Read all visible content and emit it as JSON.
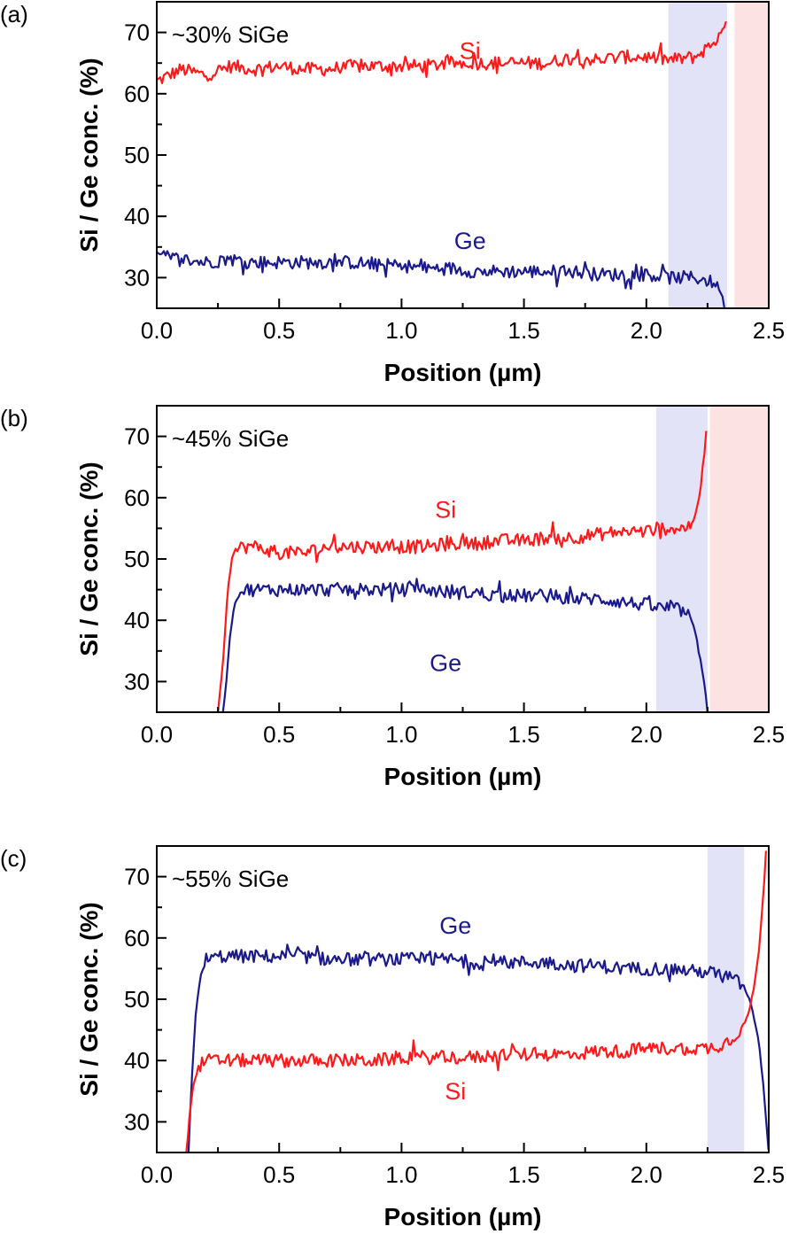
{
  "chart_data": [
    {
      "type": "line",
      "panel_label": "(a)",
      "title": "~30% SiGe",
      "xlabel": "Position (µm)",
      "ylabel": "Si / Ge conc. (%)",
      "xlim": [
        0,
        2.5
      ],
      "ylim": [
        25,
        75
      ],
      "xticks": [
        "0.0",
        "0.5",
        "1.0",
        "1.5",
        "2.0",
        "2.5"
      ],
      "yticks": [
        "30",
        "40",
        "50",
        "60",
        "70"
      ],
      "shaded_regions": [
        {
          "x": [
            2.09,
            2.33
          ],
          "color": "#e3e3f8"
        },
        {
          "x": [
            2.36,
            2.5
          ],
          "color": "#fde2e4"
        }
      ],
      "series": [
        {
          "name": "Si",
          "color": "#ff1a1a",
          "label_pos": [
            1.28,
            67
          ],
          "x": [
            0.0,
            0.1,
            0.2,
            0.3,
            0.4,
            0.5,
            0.6,
            0.7,
            0.8,
            0.9,
            1.0,
            1.1,
            1.2,
            1.3,
            1.4,
            1.5,
            1.6,
            1.7,
            1.8,
            1.9,
            2.0,
            2.1,
            2.2,
            2.25,
            2.3,
            2.32,
            2.33
          ],
          "y": [
            62,
            64,
            63,
            64.5,
            64,
            64.5,
            64,
            64,
            64.5,
            64.5,
            64.5,
            64.5,
            65,
            65,
            65,
            65,
            65,
            66,
            65.5,
            66,
            66,
            65.5,
            66,
            67.5,
            69.5,
            71,
            75
          ]
        },
        {
          "name": "Ge",
          "color": "#1a1a8c",
          "label_pos": [
            1.28,
            36
          ],
          "x": [
            0.0,
            0.1,
            0.2,
            0.3,
            0.4,
            0.5,
            0.6,
            0.7,
            0.8,
            0.9,
            1.0,
            1.1,
            1.2,
            1.3,
            1.4,
            1.5,
            1.6,
            1.7,
            1.8,
            1.9,
            2.0,
            2.1,
            2.2,
            2.25,
            2.28,
            2.3,
            2.31,
            2.32
          ],
          "y": [
            33.5,
            33,
            32.5,
            33,
            32.5,
            32.5,
            32.5,
            32.5,
            32.5,
            32,
            32,
            31.5,
            31.5,
            31,
            31,
            31,
            31,
            31,
            30.5,
            30.5,
            30.5,
            30,
            30,
            29.5,
            29,
            28,
            27,
            25
          ]
        }
      ]
    },
    {
      "type": "line",
      "panel_label": "(b)",
      "title": "~45% SiGe",
      "xlabel": "Position (µm)",
      "ylabel": "Si / Ge conc. (%)",
      "xlim": [
        0,
        2.5
      ],
      "ylim": [
        25,
        75
      ],
      "xticks": [
        "0.0",
        "0.5",
        "1.0",
        "1.5",
        "2.0",
        "2.5"
      ],
      "yticks": [
        "30",
        "40",
        "50",
        "60",
        "70"
      ],
      "shaded_regions": [
        {
          "x": [
            2.04,
            2.25
          ],
          "color": "#e3e3f8"
        },
        {
          "x": [
            2.26,
            2.5
          ],
          "color": "#fde2e4"
        }
      ],
      "series": [
        {
          "name": "Si",
          "color": "#ff1a1a",
          "label_pos": [
            1.18,
            58
          ],
          "x": [
            0.25,
            0.27,
            0.29,
            0.31,
            0.35,
            0.4,
            0.5,
            0.6,
            0.7,
            0.8,
            0.9,
            1.0,
            1.1,
            1.2,
            1.3,
            1.4,
            1.5,
            1.6,
            1.7,
            1.8,
            1.9,
            2.0,
            2.05,
            2.1,
            2.15,
            2.18,
            2.2,
            2.22,
            2.24,
            2.25
          ],
          "y": [
            25,
            33,
            45,
            51,
            52,
            52,
            51,
            51,
            52,
            52,
            52,
            52,
            52,
            52.5,
            52.5,
            53,
            53,
            53.5,
            53.5,
            54,
            54.5,
            54.5,
            55,
            55,
            55,
            55.5,
            57,
            61,
            68,
            75
          ]
        },
        {
          "name": "Ge",
          "color": "#1a1a8c",
          "label_pos": [
            1.18,
            33
          ],
          "x": [
            0.27,
            0.28,
            0.3,
            0.32,
            0.35,
            0.4,
            0.5,
            0.6,
            0.7,
            0.8,
            0.9,
            1.0,
            1.1,
            1.2,
            1.3,
            1.4,
            1.5,
            1.6,
            1.7,
            1.8,
            1.9,
            2.0,
            2.05,
            2.1,
            2.15,
            2.18,
            2.2,
            2.22,
            2.24,
            2.25
          ],
          "y": [
            25,
            28,
            38,
            43,
            45,
            45,
            45,
            45,
            45,
            45,
            45,
            45,
            45,
            44.5,
            44.5,
            44,
            44,
            44,
            43.5,
            43.5,
            43,
            42.5,
            42,
            42,
            41.5,
            40.5,
            38,
            34,
            29,
            25
          ]
        }
      ]
    },
    {
      "type": "line",
      "panel_label": "(c)",
      "title": "~55% SiGe",
      "xlabel": "Position (µm)",
      "ylabel": "Si / Ge conc. (%)",
      "xlim": [
        0,
        2.5
      ],
      "ylim": [
        25,
        75
      ],
      "xticks": [
        "0.0",
        "0.5",
        "1.0",
        "1.5",
        "2.0",
        "2.5"
      ],
      "yticks": [
        "30",
        "40",
        "50",
        "60",
        "70"
      ],
      "shaded_regions": [
        {
          "x": [
            2.25,
            2.4
          ],
          "color": "#e3e3f8"
        }
      ],
      "series": [
        {
          "name": "Ge",
          "color": "#1a1a8c",
          "label_pos": [
            1.22,
            62
          ],
          "x": [
            0.13,
            0.14,
            0.16,
            0.18,
            0.2,
            0.25,
            0.3,
            0.4,
            0.5,
            0.6,
            0.7,
            0.8,
            0.9,
            1.0,
            1.1,
            1.2,
            1.3,
            1.4,
            1.5,
            1.6,
            1.7,
            1.8,
            1.9,
            2.0,
            2.1,
            2.2,
            2.25,
            2.3,
            2.35,
            2.4,
            2.43,
            2.46,
            2.48,
            2.5
          ],
          "y": [
            25,
            35,
            48,
            54,
            56,
            57,
            57,
            57,
            57,
            57,
            56.5,
            56.5,
            56.5,
            56.5,
            56.5,
            56.5,
            56,
            56,
            56,
            56,
            55.5,
            55.5,
            55,
            55,
            55,
            54.5,
            54.5,
            54,
            53.5,
            52,
            49,
            43,
            35,
            25
          ]
        },
        {
          "name": "Si",
          "color": "#ff1a1a",
          "label_pos": [
            1.22,
            35
          ],
          "x": [
            0.12,
            0.13,
            0.15,
            0.17,
            0.2,
            0.25,
            0.3,
            0.4,
            0.5,
            0.6,
            0.7,
            0.8,
            0.9,
            1.0,
            1.1,
            1.2,
            1.3,
            1.4,
            1.5,
            1.6,
            1.7,
            1.8,
            1.9,
            2.0,
            2.1,
            2.2,
            2.25,
            2.3,
            2.35,
            2.4,
            2.42,
            2.44,
            2.46,
            2.48,
            2.49
          ],
          "y": [
            25,
            30,
            36,
            39,
            40,
            40,
            40,
            40,
            40,
            40,
            40,
            40,
            40,
            40.5,
            40.5,
            40.5,
            40.5,
            41,
            41,
            41,
            41,
            41.5,
            41.5,
            42,
            42,
            42,
            42,
            42.5,
            43.5,
            46,
            48,
            52,
            58,
            68,
            75
          ]
        }
      ]
    }
  ]
}
